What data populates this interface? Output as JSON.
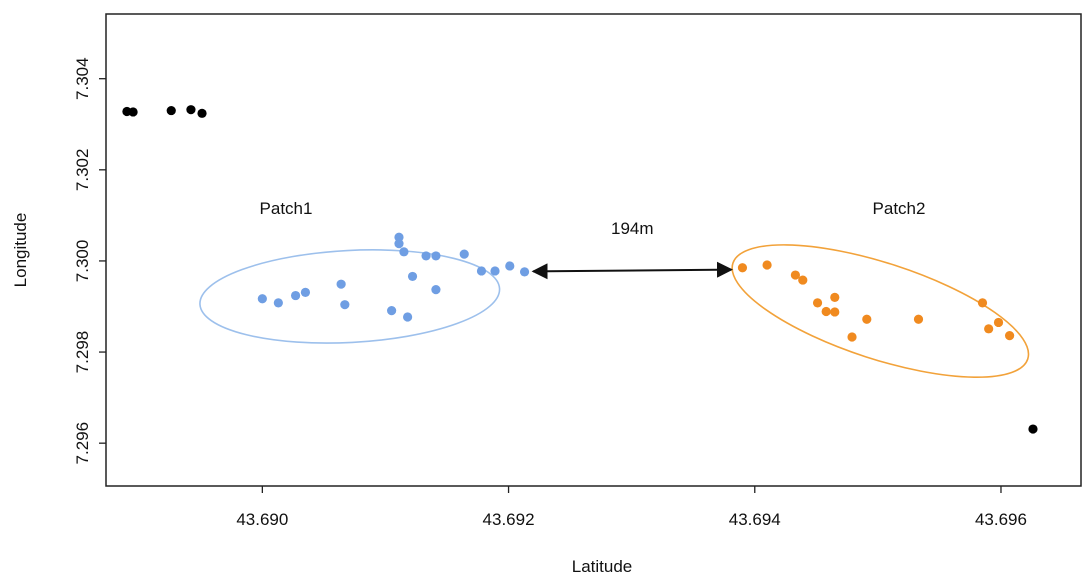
{
  "chart_data": {
    "type": "scatter",
    "title": "",
    "xlabel": "Latitude",
    "ylabel": "Longitude",
    "xlim": [
      43.68873,
      43.69665
    ],
    "ylim": [
      7.29506,
      7.30542
    ],
    "x_ticks": [
      {
        "value": 43.69,
        "label": "43.690"
      },
      {
        "value": 43.692,
        "label": "43.692"
      },
      {
        "value": 43.694,
        "label": "43.694"
      },
      {
        "value": 43.696,
        "label": "43.696"
      }
    ],
    "y_ticks": [
      {
        "value": 7.296,
        "label": "7.296"
      },
      {
        "value": 7.298,
        "label": "7.298"
      },
      {
        "value": 7.3,
        "label": "7.300"
      },
      {
        "value": 7.302,
        "label": "7.302"
      },
      {
        "value": 7.304,
        "label": "7.304"
      }
    ],
    "grid": false,
    "colors": {
      "other": "#000000",
      "patch1": "#6f9ee3",
      "patch2": "#f08a1f",
      "patch1_ring": "#9dc0ec",
      "patch2_ring": "#f2a23a",
      "frame": "#222222"
    },
    "series": [
      {
        "key": "other",
        "points": [
          [
            43.6889,
            7.30328
          ],
          [
            43.68895,
            7.30327
          ],
          [
            43.68926,
            7.3033
          ],
          [
            43.68942,
            7.30332
          ],
          [
            43.68951,
            7.30324
          ],
          [
            43.69626,
            7.29631
          ]
        ]
      },
      {
        "key": "patch1",
        "points": [
          [
            43.69,
            7.29917
          ],
          [
            43.69013,
            7.29908
          ],
          [
            43.69027,
            7.29924
          ],
          [
            43.69035,
            7.29931
          ],
          [
            43.69064,
            7.29949
          ],
          [
            43.69067,
            7.29904
          ],
          [
            43.69105,
            7.29891
          ],
          [
            43.69111,
            7.30052
          ],
          [
            43.69111,
            7.30038
          ],
          [
            43.69115,
            7.3002
          ],
          [
            43.69118,
            7.29877
          ],
          [
            43.69122,
            7.29966
          ],
          [
            43.69133,
            7.30011
          ],
          [
            43.69141,
            7.30011
          ],
          [
            43.69141,
            7.29937
          ],
          [
            43.69164,
            7.30015
          ],
          [
            43.69178,
            7.29978
          ],
          [
            43.69189,
            7.29978
          ],
          [
            43.69201,
            7.29989
          ],
          [
            43.69213,
            7.29976
          ]
        ]
      },
      {
        "key": "patch2",
        "points": [
          [
            43.6939,
            7.29985
          ],
          [
            43.6941,
            7.29991
          ],
          [
            43.69433,
            7.29969
          ],
          [
            43.69439,
            7.29958
          ],
          [
            43.69451,
            7.29908
          ],
          [
            43.69458,
            7.29889
          ],
          [
            43.69465,
            7.29888
          ],
          [
            43.69465,
            7.2992
          ],
          [
            43.69479,
            7.29833
          ],
          [
            43.69491,
            7.29872
          ],
          [
            43.69533,
            7.29872
          ],
          [
            43.69585,
            7.29908
          ],
          [
            43.6959,
            7.29851
          ],
          [
            43.69598,
            7.29865
          ],
          [
            43.69607,
            7.29836
          ]
        ]
      }
    ],
    "patches": [
      {
        "key": "patch1",
        "label": "Patch1",
        "center": [
          43.69071,
          7.29922
        ],
        "radii": [
          0.00122,
          0.00109
        ]
      },
      {
        "key": "patch2",
        "label": "Patch2",
        "center": [
          43.69502,
          7.2989
        ],
        "radii": [
          0.00124,
          0.0011
        ]
      }
    ],
    "distance": {
      "label": "194m",
      "from": [
        43.6922,
        7.29977
      ],
      "to": [
        43.69381,
        7.29981
      ]
    }
  }
}
